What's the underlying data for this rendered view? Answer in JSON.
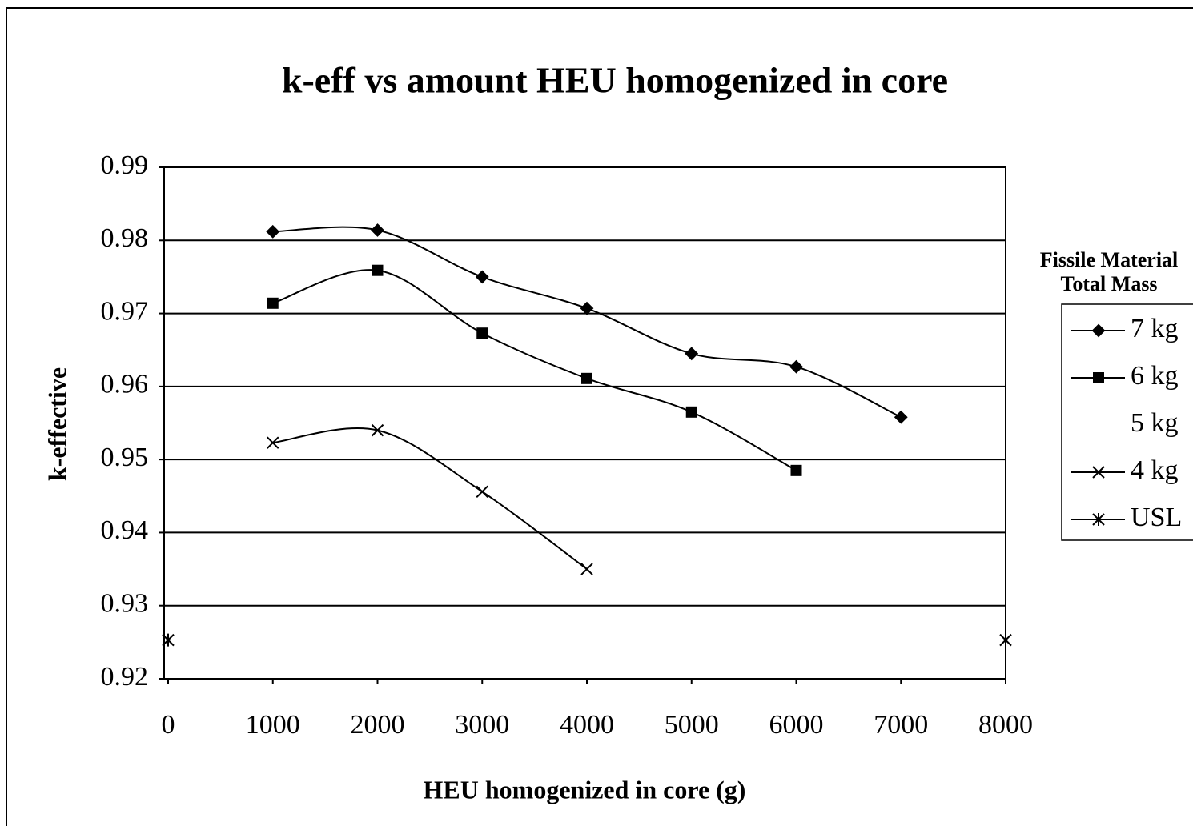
{
  "chart_data": {
    "type": "line",
    "title": "k-eff vs amount HEU homogenized in core",
    "x_label": "HEU homogenized in core (g)",
    "y_label": "k-effective",
    "legend_title": [
      "Fissile Material",
      "Total Mass"
    ],
    "legend": "right",
    "grid": true,
    "smooth": true,
    "x": [
      0,
      1000,
      2000,
      3000,
      4000,
      5000,
      6000,
      7000,
      8000
    ],
    "series": [
      {
        "name": "7 kg",
        "color": "#000000",
        "marker": "diamond",
        "values": [
          null,
          0.9812,
          0.9814,
          0.975,
          0.9707,
          0.9645,
          0.9627,
          0.9558,
          null
        ]
      },
      {
        "name": "6 kg",
        "color": "#000000",
        "marker": "square",
        "values": [
          null,
          0.9714,
          0.9759,
          0.9673,
          0.9611,
          0.9565,
          0.9485,
          null,
          null
        ]
      },
      {
        "name": "5 kg",
        "color": "#000000",
        "marker": "none",
        "values": [
          null,
          null,
          null,
          null,
          null,
          null,
          null,
          null,
          null
        ]
      },
      {
        "name": "4 kg",
        "color": "#000000",
        "marker": "x",
        "values": [
          null,
          0.9523,
          0.954,
          0.9456,
          0.935,
          null,
          null,
          null,
          null
        ]
      },
      {
        "name": "USL",
        "color": "#000000",
        "marker": "asterisk",
        "values": [
          0.9253,
          null,
          null,
          null,
          null,
          null,
          null,
          null,
          0.9253
        ]
      }
    ],
    "xlim": [
      0,
      8000
    ],
    "xticks": [
      0,
      1000,
      2000,
      3000,
      4000,
      5000,
      6000,
      7000,
      8000
    ],
    "ylim": [
      0.92,
      0.99
    ],
    "yticks": [
      0.92,
      0.93,
      0.94,
      0.95,
      0.96,
      0.97,
      0.98,
      0.99
    ]
  }
}
